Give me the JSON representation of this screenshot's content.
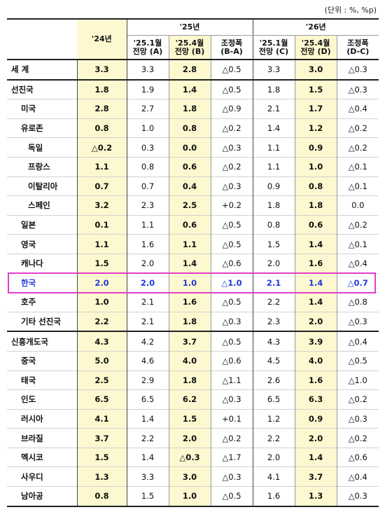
{
  "unit_note": "(단위 : %, %p)",
  "header": {
    "year24": "'24년",
    "year25": "'25년",
    "year26": "'26년",
    "cols": [
      {
        "l1": "'25.1월",
        "l2": "전망 (A)"
      },
      {
        "l1": "'25.4월",
        "l2": "전망 (B)"
      },
      {
        "l1": "조정폭",
        "l2": "(B-A)"
      },
      {
        "l1": "'25.1월",
        "l2": "전망 (C)"
      },
      {
        "l1": "'25.4월",
        "l2": "전망 (D)"
      },
      {
        "l1": "조정폭",
        "l2": "(D-C)"
      }
    ]
  },
  "rows": [
    {
      "name": "세  계",
      "level": 0,
      "group": true,
      "v24": "3.3",
      "a": "3.3",
      "b": "2.8",
      "ba": "△0.5",
      "c": "3.3",
      "d": "3.0",
      "dc": "△0.3"
    },
    {
      "name": "선진국",
      "level": 0,
      "group": true,
      "v24": "1.8",
      "a": "1.9",
      "b": "1.4",
      "ba": "△0.5",
      "c": "1.8",
      "d": "1.5",
      "dc": "△0.3"
    },
    {
      "name": "미국",
      "level": 1,
      "v24": "2.8",
      "a": "2.7",
      "b": "1.8",
      "ba": "△0.9",
      "c": "2.1",
      "d": "1.7",
      "dc": "△0.4"
    },
    {
      "name": "유로존",
      "level": 1,
      "v24": "0.8",
      "a": "1.0",
      "b": "0.8",
      "ba": "△0.2",
      "c": "1.4",
      "d": "1.2",
      "dc": "△0.2"
    },
    {
      "name": "독일",
      "level": 2,
      "v24": "△0.2",
      "a": "0.3",
      "b": "0.0",
      "ba": "△0.3",
      "c": "1.1",
      "d": "0.9",
      "dc": "△0.2"
    },
    {
      "name": "프랑스",
      "level": 2,
      "v24": "1.1",
      "a": "0.8",
      "b": "0.6",
      "ba": "△0.2",
      "c": "1.1",
      "d": "1.0",
      "dc": "△0.1"
    },
    {
      "name": "이탈리아",
      "level": 2,
      "v24": "0.7",
      "a": "0.7",
      "b": "0.4",
      "ba": "△0.3",
      "c": "0.9",
      "d": "0.8",
      "dc": "△0.1"
    },
    {
      "name": "스페인",
      "level": 2,
      "v24": "3.2",
      "a": "2.3",
      "b": "2.5",
      "ba": "+0.2",
      "c": "1.8",
      "d": "1.8",
      "dc": "0.0"
    },
    {
      "name": "일본",
      "level": 1,
      "v24": "0.1",
      "a": "1.1",
      "b": "0.6",
      "ba": "△0.5",
      "c": "0.8",
      "d": "0.6",
      "dc": "△0.2"
    },
    {
      "name": "영국",
      "level": 1,
      "v24": "1.1",
      "a": "1.6",
      "b": "1.1",
      "ba": "△0.5",
      "c": "1.5",
      "d": "1.4",
      "dc": "△0.1"
    },
    {
      "name": "캐나다",
      "level": 1,
      "v24": "1.5",
      "a": "2.0",
      "b": "1.4",
      "ba": "△0.6",
      "c": "2.0",
      "d": "1.6",
      "dc": "△0.4"
    },
    {
      "name": "한국",
      "level": 1,
      "highlight": true,
      "v24": "2.0",
      "a": "2.0",
      "b": "1.0",
      "ba": "△1.0",
      "c": "2.1",
      "d": "1.4",
      "dc": "△0.7"
    },
    {
      "name": "호주",
      "level": 1,
      "v24": "1.0",
      "a": "2.1",
      "b": "1.6",
      "ba": "△0.5",
      "c": "2.2",
      "d": "1.4",
      "dc": "△0.8"
    },
    {
      "name": "기타 선진국",
      "level": 1,
      "v24": "2.2",
      "a": "2.1",
      "b": "1.8",
      "ba": "△0.3",
      "c": "2.3",
      "d": "2.0",
      "dc": "△0.3"
    },
    {
      "name": "신흥개도국",
      "level": 0,
      "group": true,
      "v24": "4.3",
      "a": "4.2",
      "b": "3.7",
      "ba": "△0.5",
      "c": "4.3",
      "d": "3.9",
      "dc": "△0.4"
    },
    {
      "name": "중국",
      "level": 1,
      "v24": "5.0",
      "a": "4.6",
      "b": "4.0",
      "ba": "△0.6",
      "c": "4.5",
      "d": "4.0",
      "dc": "△0.5"
    },
    {
      "name": "태국",
      "level": 1,
      "v24": "2.5",
      "a": "2.9",
      "b": "1.8",
      "ba": "△1.1",
      "c": "2.6",
      "d": "1.6",
      "dc": "△1.0"
    },
    {
      "name": "인도",
      "level": 1,
      "v24": "6.5",
      "a": "6.5",
      "b": "6.2",
      "ba": "△0.3",
      "c": "6.5",
      "d": "6.3",
      "dc": "△0.2"
    },
    {
      "name": "러시아",
      "level": 1,
      "v24": "4.1",
      "a": "1.4",
      "b": "1.5",
      "ba": "+0.1",
      "c": "1.2",
      "d": "0.9",
      "dc": "△0.3"
    },
    {
      "name": "브라질",
      "level": 1,
      "v24": "3.7",
      "a": "2.2",
      "b": "2.0",
      "ba": "△0.2",
      "c": "2.2",
      "d": "2.0",
      "dc": "△0.2"
    },
    {
      "name": "멕시코",
      "level": 1,
      "v24": "1.5",
      "a": "1.4",
      "b": "△0.3",
      "ba": "△1.7",
      "c": "2.0",
      "d": "1.4",
      "dc": "△0.6"
    },
    {
      "name": "사우디",
      "level": 1,
      "v24": "1.3",
      "a": "3.3",
      "b": "3.0",
      "ba": "△0.3",
      "c": "4.1",
      "d": "3.7",
      "dc": "△0.4"
    },
    {
      "name": "남아공",
      "level": 1,
      "v24": "0.8",
      "a": "1.5",
      "b": "1.0",
      "ba": "△0.5",
      "c": "1.6",
      "d": "1.3",
      "dc": "△0.3"
    }
  ],
  "colors": {
    "highlight_bg": "#fdf8cf",
    "korea_text": "#1f3bd8",
    "korea_box": "#e13fc9"
  }
}
